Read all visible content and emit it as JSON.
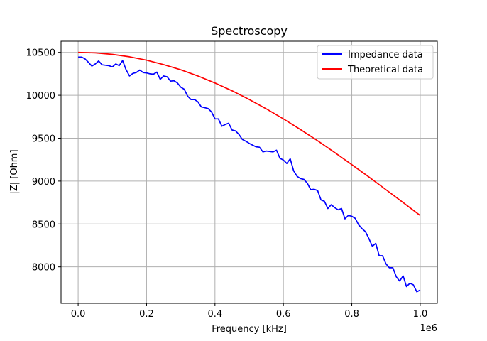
{
  "chart_data": {
    "type": "line",
    "title": "Spectroscopy",
    "xlabel": "Frequency [kHz]",
    "ylabel": "|Z| [Ohm]",
    "x_offset_text": "1e6",
    "xlim": [
      -50000,
      1050000
    ],
    "ylim": [
      7575,
      10630
    ],
    "x_ticks": [
      0,
      200000,
      400000,
      600000,
      800000,
      1000000
    ],
    "x_tick_labels": [
      "0.0",
      "0.2",
      "0.4",
      "0.6",
      "0.8",
      "1.0"
    ],
    "y_ticks": [
      8000,
      8500,
      9000,
      9500,
      10000,
      10500
    ],
    "y_tick_labels": [
      "8000",
      "8500",
      "9000",
      "9500",
      "10000",
      "10500"
    ],
    "grid": true,
    "legend_position": "top-right",
    "series": [
      {
        "name": "Impedance data",
        "color": "#0000ff",
        "x": [
          0,
          10000,
          20000,
          30000,
          40000,
          50000,
          60000,
          70000,
          80000,
          90000,
          100000,
          110000,
          120000,
          130000,
          140000,
          150000,
          160000,
          170000,
          180000,
          190000,
          200000,
          210000,
          220000,
          230000,
          240000,
          250000,
          260000,
          270000,
          280000,
          290000,
          300000,
          310000,
          320000,
          330000,
          340000,
          350000,
          360000,
          370000,
          380000,
          390000,
          400000,
          410000,
          420000,
          430000,
          440000,
          450000,
          460000,
          470000,
          480000,
          490000,
          500000,
          510000,
          520000,
          530000,
          540000,
          550000,
          560000,
          570000,
          580000,
          590000,
          600000,
          610000,
          620000,
          630000,
          640000,
          650000,
          660000,
          670000,
          680000,
          690000,
          700000,
          710000,
          720000,
          730000,
          740000,
          750000,
          760000,
          770000,
          780000,
          790000,
          800000,
          810000,
          820000,
          830000,
          840000,
          850000,
          860000,
          870000,
          880000,
          890000,
          900000,
          910000,
          920000,
          930000,
          940000,
          950000,
          960000,
          970000,
          980000,
          990000,
          1000000
        ],
        "y": [
          10445,
          10445,
          10425,
          10385,
          10340,
          10365,
          10400,
          10355,
          10350,
          10345,
          10330,
          10365,
          10345,
          10405,
          10300,
          10225,
          10255,
          10265,
          10295,
          10265,
          10260,
          10250,
          10245,
          10270,
          10185,
          10225,
          10215,
          10165,
          10170,
          10145,
          10095,
          10070,
          9990,
          9950,
          9950,
          9925,
          9865,
          9855,
          9845,
          9805,
          9725,
          9725,
          9640,
          9660,
          9675,
          9595,
          9585,
          9545,
          9485,
          9465,
          9440,
          9420,
          9400,
          9395,
          9340,
          9350,
          9345,
          9340,
          9360,
          9265,
          9245,
          9205,
          9260,
          9120,
          9055,
          9030,
          9020,
          8975,
          8900,
          8905,
          8890,
          8780,
          8765,
          8680,
          8725,
          8690,
          8665,
          8680,
          8560,
          8600,
          8590,
          8565,
          8490,
          8445,
          8410,
          8330,
          8240,
          8275,
          8130,
          8130,
          8035,
          7990,
          7990,
          7885,
          7835,
          7895,
          7770,
          7810,
          7790,
          7710,
          7730
        ]
      },
      {
        "name": "Theoretical data",
        "color": "#ff0000",
        "x": [
          0,
          50000,
          100000,
          150000,
          200000,
          250000,
          300000,
          350000,
          400000,
          450000,
          500000,
          550000,
          600000,
          650000,
          700000,
          750000,
          800000,
          850000,
          900000,
          950000,
          1000000
        ],
        "y": [
          10500,
          10494,
          10477,
          10449,
          10409,
          10358,
          10297,
          10225,
          10143,
          10052,
          9951,
          9842,
          9725,
          9600,
          9470,
          9333,
          9192,
          9048,
          8900,
          8750,
          8599
        ]
      }
    ]
  }
}
